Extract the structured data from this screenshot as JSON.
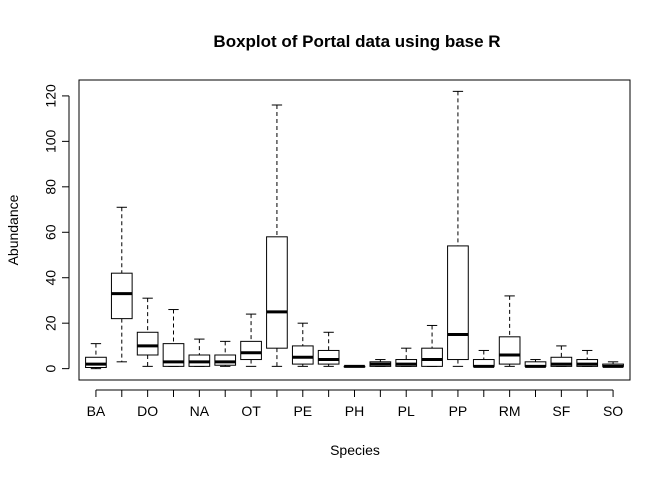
{
  "chart_data": {
    "type": "boxplot",
    "title": "Boxplot of Portal data using base R",
    "xlabel": "Species",
    "ylabel": "Abundance",
    "ylim": [
      -5,
      127
    ],
    "yticks": [
      0,
      20,
      40,
      60,
      80,
      100,
      120
    ],
    "grid": false,
    "categories": [
      "BA",
      "DO",
      "NA",
      "OT",
      "PE",
      "PH",
      "PL",
      "PP",
      "RM",
      "SF",
      "SO"
    ],
    "boxes": [
      {
        "category": "BA",
        "visible_label": true,
        "min": 0,
        "q1": 0.5,
        "median": 2,
        "q3": 5,
        "max": 11
      },
      {
        "category": "",
        "visible_label": false,
        "min": 3,
        "q1": 22,
        "median": 33,
        "q3": 42,
        "max": 71
      },
      {
        "category": "DO",
        "visible_label": true,
        "min": 1,
        "q1": 6,
        "median": 10,
        "q3": 16,
        "max": 31
      },
      {
        "category": "",
        "visible_label": false,
        "min": 1,
        "q1": 1,
        "median": 3,
        "q3": 11,
        "max": 26
      },
      {
        "category": "NA",
        "visible_label": true,
        "min": 1,
        "q1": 1,
        "median": 3,
        "q3": 6,
        "max": 13
      },
      {
        "category": "",
        "visible_label": false,
        "min": 1,
        "q1": 1.5,
        "median": 3,
        "q3": 6,
        "max": 12
      },
      {
        "category": "OT",
        "visible_label": true,
        "min": 1,
        "q1": 4,
        "median": 7,
        "q3": 12,
        "max": 24
      },
      {
        "category": "",
        "visible_label": false,
        "min": 1,
        "q1": 9,
        "median": 25,
        "q3": 58,
        "max": 116
      },
      {
        "category": "PE",
        "visible_label": true,
        "min": 1,
        "q1": 2,
        "median": 5,
        "q3": 10,
        "max": 20
      },
      {
        "category": "",
        "visible_label": false,
        "min": 1,
        "q1": 2,
        "median": 4,
        "q3": 8,
        "max": 16
      },
      {
        "category": "PH",
        "visible_label": true,
        "min": 1,
        "q1": 1,
        "median": 1,
        "q3": 1,
        "max": 1
      },
      {
        "category": "",
        "visible_label": false,
        "min": 1,
        "q1": 1,
        "median": 2,
        "q3": 3,
        "max": 4
      },
      {
        "category": "PL",
        "visible_label": true,
        "min": 1,
        "q1": 1,
        "median": 2,
        "q3": 4,
        "max": 9
      },
      {
        "category": "",
        "visible_label": false,
        "min": 1,
        "q1": 1,
        "median": 4,
        "q3": 9,
        "max": 19
      },
      {
        "category": "PP",
        "visible_label": true,
        "min": 1,
        "q1": 4,
        "median": 15,
        "q3": 54,
        "max": 122
      },
      {
        "category": "",
        "visible_label": false,
        "min": 1,
        "q1": 1,
        "median": 1,
        "q3": 4,
        "max": 8
      },
      {
        "category": "RM",
        "visible_label": true,
        "min": 1,
        "q1": 2,
        "median": 6,
        "q3": 14,
        "max": 32
      },
      {
        "category": "",
        "visible_label": false,
        "min": 1,
        "q1": 1,
        "median": 1,
        "q3": 3,
        "max": 4
      },
      {
        "category": "SF",
        "visible_label": true,
        "min": 1,
        "q1": 1,
        "median": 2,
        "q3": 5,
        "max": 10
      },
      {
        "category": "",
        "visible_label": false,
        "min": 1,
        "q1": 1,
        "median": 2,
        "q3": 4,
        "max": 8
      },
      {
        "category": "SO",
        "visible_label": true,
        "min": 1,
        "q1": 1,
        "median": 1,
        "q3": 2,
        "max": 3
      }
    ]
  }
}
